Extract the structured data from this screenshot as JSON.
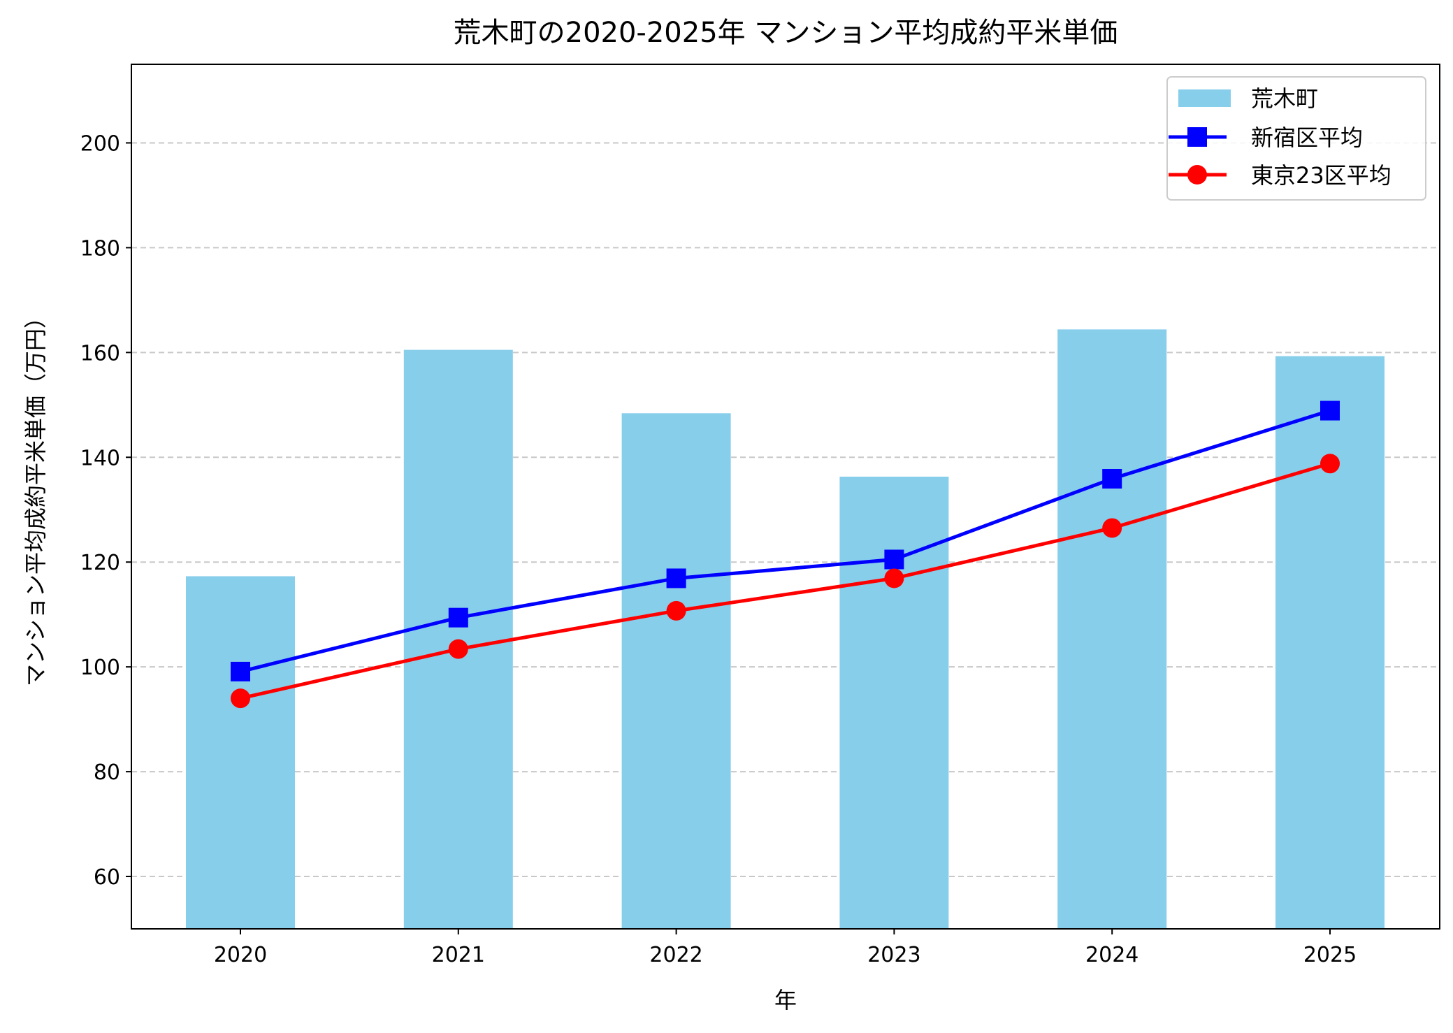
{
  "chart_data": {
    "type": "bar+line",
    "title": "荒木町の2020-2025年 マンション平均成約平米単価",
    "xlabel": "年",
    "ylabel": "マンション平均成約平米単価（万円）",
    "categories": [
      "2020",
      "2021",
      "2022",
      "2023",
      "2024",
      "2025"
    ],
    "ylim": [
      50,
      215
    ],
    "yticks": [
      60,
      80,
      100,
      120,
      140,
      160,
      180,
      200
    ],
    "grid": "y-dashed",
    "legend_position": "top-right",
    "series": [
      {
        "name": "荒木町",
        "kind": "bar",
        "color": "#87CEEB",
        "values": [
          117.3,
          160.5,
          148.4,
          136.3,
          164.4,
          159.3
        ]
      },
      {
        "name": "新宿区平均",
        "kind": "line",
        "marker": "square",
        "color": "#0000FF",
        "values": [
          99.1,
          109.4,
          116.9,
          120.5,
          135.9,
          148.9
        ]
      },
      {
        "name": "東京23区平均",
        "kind": "line",
        "marker": "circle",
        "color": "#FF0000",
        "values": [
          94.0,
          103.4,
          110.7,
          116.9,
          126.5,
          138.8
        ]
      }
    ]
  }
}
